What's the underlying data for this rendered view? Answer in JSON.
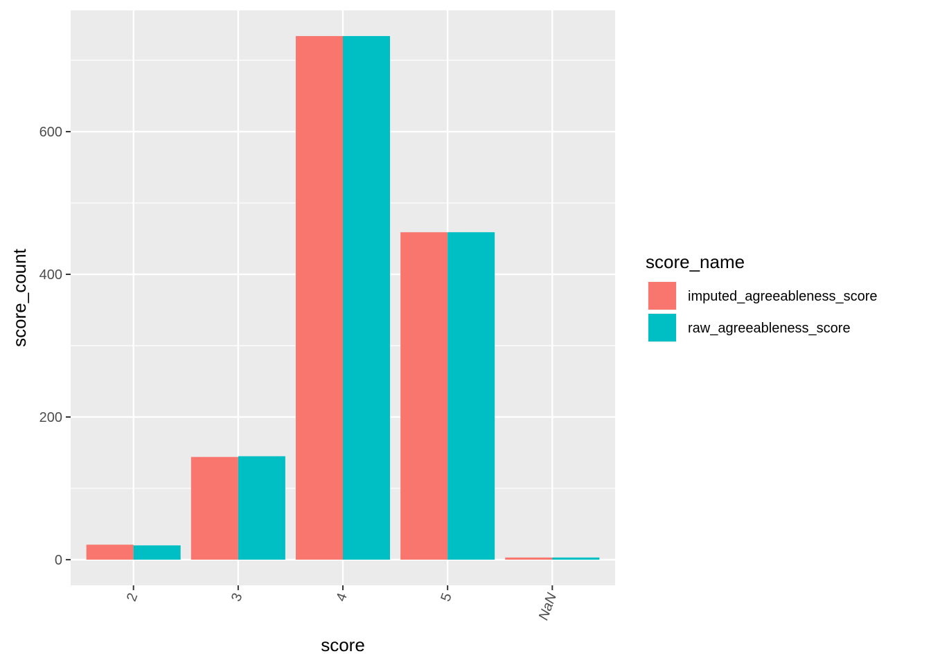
{
  "chart_data": {
    "type": "bar",
    "categories": [
      "2",
      "3",
      "4",
      "5",
      "NaN"
    ],
    "series": [
      {
        "name": "imputed_agreeableness_score",
        "values": [
          21,
          144,
          734,
          459,
          3
        ],
        "color": "#F8766D"
      },
      {
        "name": "raw_agreeableness_score",
        "values": [
          20,
          145,
          734,
          459,
          3
        ],
        "color": "#00BFC4"
      }
    ],
    "title": "",
    "xlabel": "score",
    "ylabel": "score_count",
    "ylim": [
      -36,
      770
    ],
    "yticks": [
      0,
      200,
      400,
      600
    ],
    "grid": true,
    "legend": {
      "title": "score_name",
      "placement": "right"
    },
    "colors": {
      "panel_background": "#EBEBEB",
      "grid": "#FFFFFF",
      "tick_text": "#4D4D4D"
    }
  }
}
